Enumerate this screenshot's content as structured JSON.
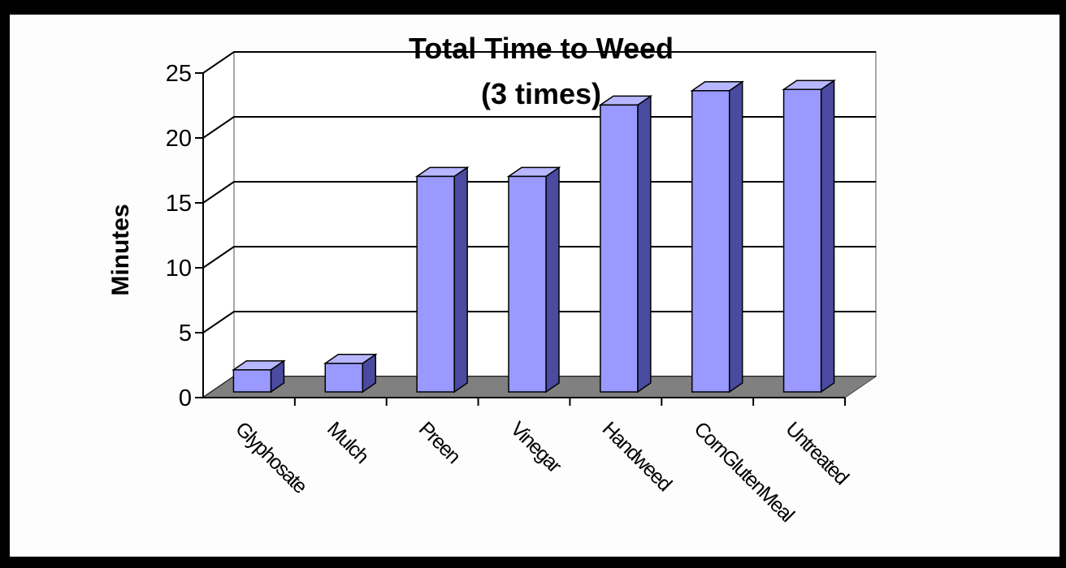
{
  "chart_data": {
    "type": "bar",
    "style": "3d-column",
    "title": [
      "Total Time to Weed",
      "(3 times)"
    ],
    "xlabel": "",
    "ylabel": "Minutes",
    "ylim": [
      0,
      25
    ],
    "yticks": [
      0,
      5,
      10,
      15,
      20,
      25
    ],
    "grid": true,
    "legend": "none",
    "categories": [
      "Glyphosate",
      "Mulch",
      "Preen",
      "Vinegar",
      "Handweed",
      "CornGlutenMeal",
      "Untreated"
    ],
    "values": [
      1.7,
      2.2,
      16.6,
      16.6,
      22.1,
      23.2,
      23.3
    ]
  },
  "colors": {
    "bar_front": "#9999ff",
    "bar_top": "#b7b7ff",
    "bar_side": "#4a4aa0",
    "floor": "#808080",
    "wall": "#ffffff",
    "frame": "#000000"
  }
}
